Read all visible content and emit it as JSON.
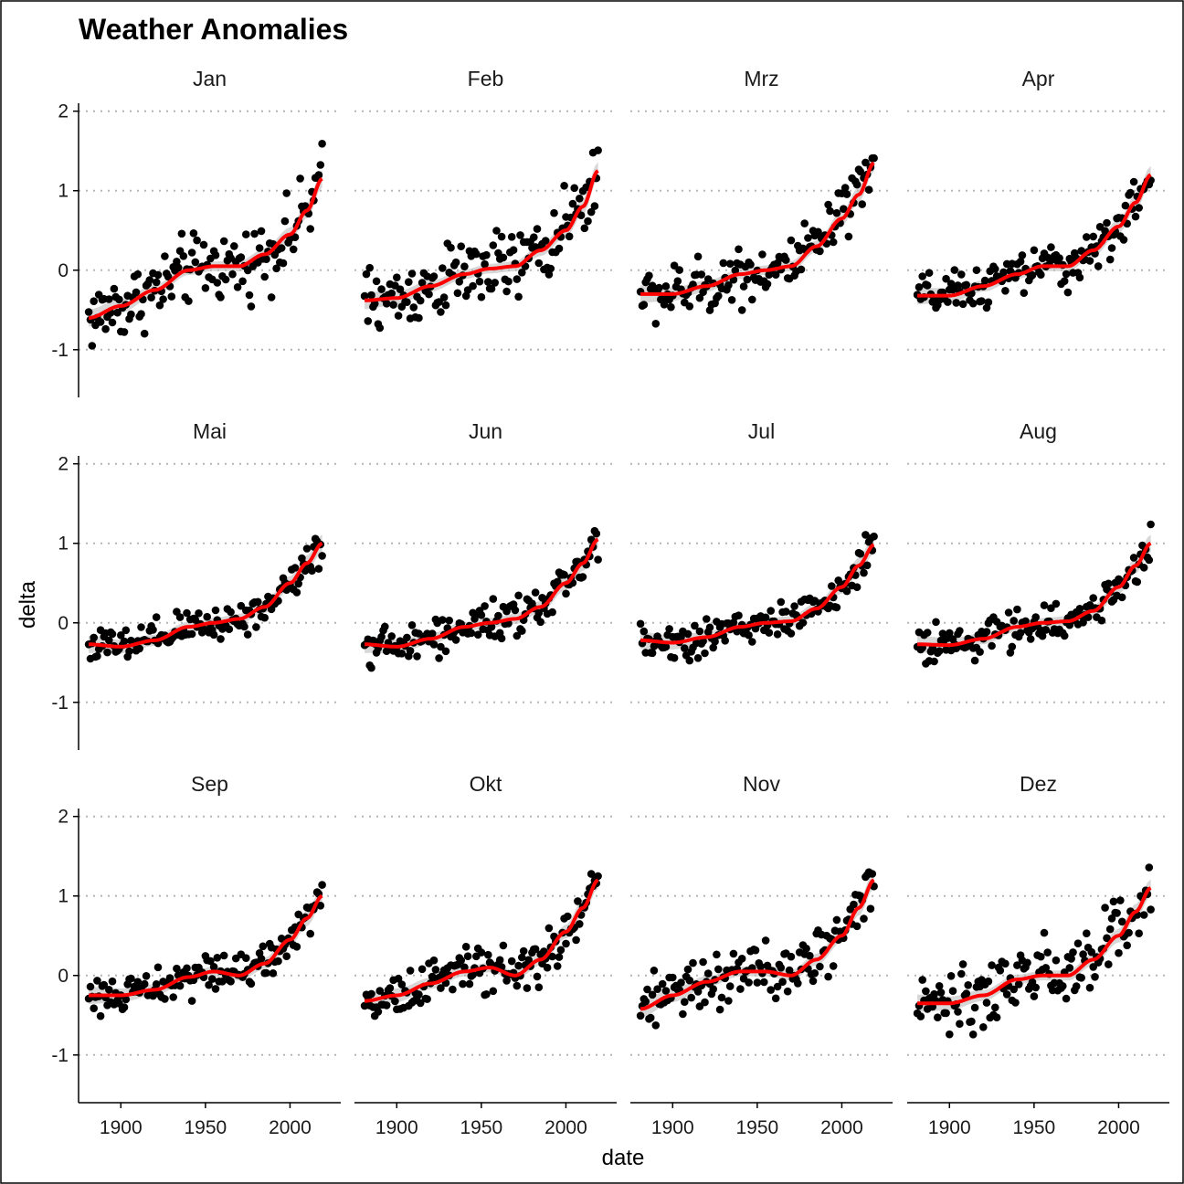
{
  "chart_data": {
    "type": "scatter",
    "title": "Weather Anomalies",
    "xlabel": "date",
    "ylabel": "delta",
    "xlim": [
      1875,
      2030
    ],
    "ylim": [
      -1.6,
      2.1
    ],
    "x_ticks": [
      1900,
      1950,
      2000
    ],
    "x_tick_labels": [
      "1900",
      "1950",
      "2000"
    ],
    "y_ticks": [
      -1,
      0,
      1,
      2
    ],
    "y_tick_labels": [
      "-1",
      "0",
      "1",
      "2"
    ],
    "grid": "horizontal dotted",
    "point_color": "#000000",
    "trend_color": "#ff0000",
    "band_color": "#bdbdbd",
    "years": [
      1881,
      2019
    ],
    "panels": [
      {
        "name": "Jan",
        "smooth_x": [
          1881,
          1900,
          1920,
          1940,
          1955,
          1970,
          1985,
          2000,
          2010,
          2019
        ],
        "smooth_y": [
          -0.6,
          -0.45,
          -0.25,
          0.0,
          0.05,
          0.05,
          0.2,
          0.45,
          0.75,
          1.15
        ],
        "spread": 0.32
      },
      {
        "name": "Feb",
        "smooth_x": [
          1881,
          1900,
          1920,
          1940,
          1955,
          1970,
          1985,
          2000,
          2010,
          2019
        ],
        "smooth_y": [
          -0.38,
          -0.35,
          -0.2,
          -0.05,
          0.02,
          0.05,
          0.25,
          0.5,
          0.8,
          1.25
        ],
        "spread": 0.32
      },
      {
        "name": "Mrz",
        "smooth_x": [
          1881,
          1900,
          1920,
          1940,
          1955,
          1970,
          1985,
          2000,
          2010,
          2019
        ],
        "smooth_y": [
          -0.3,
          -0.3,
          -0.2,
          -0.05,
          0.0,
          0.05,
          0.3,
          0.65,
          0.95,
          1.35
        ],
        "spread": 0.26
      },
      {
        "name": "Apr",
        "smooth_x": [
          1881,
          1900,
          1920,
          1940,
          1955,
          1970,
          1985,
          2000,
          2010,
          2019
        ],
        "smooth_y": [
          -0.32,
          -0.32,
          -0.2,
          -0.05,
          0.05,
          0.05,
          0.25,
          0.55,
          0.85,
          1.2
        ],
        "spread": 0.2
      },
      {
        "name": "Mai",
        "smooth_x": [
          1881,
          1900,
          1920,
          1940,
          1955,
          1970,
          1985,
          2000,
          2010,
          2019
        ],
        "smooth_y": [
          -0.27,
          -0.3,
          -0.22,
          -0.05,
          0.0,
          0.05,
          0.2,
          0.5,
          0.75,
          1.0
        ],
        "spread": 0.17
      },
      {
        "name": "Jun",
        "smooth_x": [
          1881,
          1900,
          1920,
          1940,
          1955,
          1970,
          1985,
          2000,
          2010,
          2019
        ],
        "smooth_y": [
          -0.27,
          -0.3,
          -0.2,
          -0.05,
          0.0,
          0.05,
          0.2,
          0.5,
          0.75,
          1.05
        ],
        "spread": 0.17
      },
      {
        "name": "Jul",
        "smooth_x": [
          1881,
          1900,
          1920,
          1940,
          1955,
          1970,
          1985,
          2000,
          2010,
          2019
        ],
        "smooth_y": [
          -0.22,
          -0.25,
          -0.18,
          -0.05,
          0.0,
          0.02,
          0.18,
          0.45,
          0.72,
          0.98
        ],
        "spread": 0.17
      },
      {
        "name": "Aug",
        "smooth_x": [
          1881,
          1900,
          1920,
          1940,
          1955,
          1970,
          1985,
          2000,
          2010,
          2019
        ],
        "smooth_y": [
          -0.27,
          -0.28,
          -0.2,
          -0.05,
          0.0,
          0.02,
          0.15,
          0.45,
          0.72,
          1.0
        ],
        "spread": 0.17
      },
      {
        "name": "Sep",
        "smooth_x": [
          1881,
          1900,
          1920,
          1940,
          1955,
          1970,
          1985,
          2000,
          2010,
          2019
        ],
        "smooth_y": [
          -0.25,
          -0.25,
          -0.18,
          -0.02,
          0.05,
          0.0,
          0.15,
          0.45,
          0.72,
          1.0
        ],
        "spread": 0.17
      },
      {
        "name": "Okt",
        "smooth_x": [
          1881,
          1900,
          1920,
          1940,
          1955,
          1970,
          1985,
          2000,
          2010,
          2019
        ],
        "smooth_y": [
          -0.32,
          -0.25,
          -0.1,
          0.05,
          0.1,
          0.0,
          0.2,
          0.55,
          0.85,
          1.2
        ],
        "spread": 0.2
      },
      {
        "name": "Nov",
        "smooth_x": [
          1881,
          1900,
          1920,
          1940,
          1955,
          1970,
          1985,
          2000,
          2010,
          2019
        ],
        "smooth_y": [
          -0.42,
          -0.25,
          -0.08,
          0.05,
          0.05,
          0.0,
          0.2,
          0.5,
          0.85,
          1.2
        ],
        "spread": 0.24
      },
      {
        "name": "Dez",
        "smooth_x": [
          1881,
          1900,
          1920,
          1940,
          1955,
          1970,
          1985,
          2000,
          2010,
          2019
        ],
        "smooth_y": [
          -0.35,
          -0.35,
          -0.25,
          -0.05,
          0.0,
          0.0,
          0.2,
          0.5,
          0.8,
          1.1
        ],
        "spread": 0.3
      }
    ]
  }
}
